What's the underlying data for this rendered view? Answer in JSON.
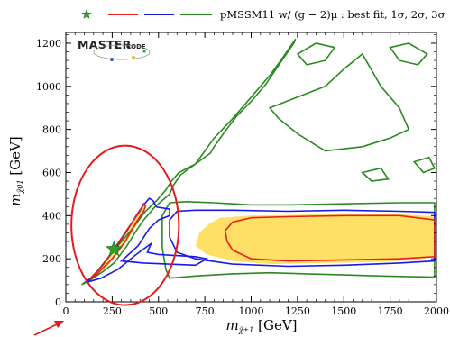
{
  "chart_data": {
    "type": "contour",
    "legend_text": "pMSSM11  w/ (g − 2)μ :  best fit, 1σ, 2σ, 3σ",
    "legend_entries": [
      {
        "name": "best fit",
        "symbol": "star",
        "color": "#2ca02c"
      },
      {
        "name": "1σ",
        "symbol": "line",
        "color": "#e8201a"
      },
      {
        "name": "2σ",
        "symbol": "line",
        "color": "#1a1ae8"
      },
      {
        "name": "3σ",
        "symbol": "line",
        "color": "#2a8a20"
      }
    ],
    "xlabel": "m",
    "xlabel_sub": "χ̃±1",
    "xlabel_unit": " [GeV]",
    "ylabel": "m",
    "ylabel_sub": "χ̃01",
    "ylabel_unit": " [GeV]",
    "xlim": [
      0,
      2000
    ],
    "ylim": [
      0,
      1250
    ],
    "xticks": [
      0,
      250,
      500,
      750,
      1000,
      1250,
      1500,
      1750,
      2000
    ],
    "yticks": [
      0,
      200,
      400,
      600,
      800,
      1000,
      1200
    ],
    "best_fit": {
      "x": 260,
      "y": 245
    },
    "contours": {
      "one_sigma_fill": [
        [
          [
            115,
            95
          ],
          [
            200,
            180
          ],
          [
            300,
            300
          ],
          [
            380,
            400
          ],
          [
            420,
            460
          ],
          [
            430,
            440
          ],
          [
            400,
            380
          ],
          [
            330,
            280
          ],
          [
            230,
            170
          ],
          [
            140,
            100
          ]
        ]
      ],
      "one_sigma_fill_band": [
        [
          [
            760,
            220
          ],
          [
            900,
            190
          ],
          [
            1100,
            175
          ],
          [
            1400,
            180
          ],
          [
            1700,
            185
          ],
          [
            1900,
            195
          ],
          [
            1990,
            210
          ],
          [
            1990,
            395
          ],
          [
            1850,
            405
          ],
          [
            1600,
            410
          ],
          [
            1300,
            405
          ],
          [
            1000,
            400
          ],
          [
            830,
            390
          ],
          [
            770,
            360
          ],
          [
            720,
            320
          ],
          [
            700,
            260
          ]
        ]
      ],
      "red_line": [
        [
          [
            130,
            105
          ],
          [
            200,
            170
          ],
          [
            280,
            270
          ],
          [
            350,
            360
          ],
          [
            400,
            420
          ],
          [
            420,
            455
          ],
          [
            430,
            445
          ],
          [
            420,
            420
          ],
          [
            380,
            370
          ],
          [
            320,
            280
          ],
          [
            250,
            200
          ],
          [
            170,
            130
          ],
          [
            130,
            105
          ]
        ],
        [
          [
            900,
            240
          ],
          [
            1000,
            200
          ],
          [
            1200,
            190
          ],
          [
            1500,
            195
          ],
          [
            1800,
            200
          ],
          [
            1990,
            210
          ],
          [
            1990,
            380
          ],
          [
            1800,
            400
          ],
          [
            1500,
            400
          ],
          [
            1200,
            395
          ],
          [
            1000,
            390
          ],
          [
            900,
            370
          ],
          [
            860,
            330
          ],
          [
            870,
            280
          ],
          [
            900,
            240
          ]
        ]
      ],
      "blue_line": [
        [
          [
            110,
            90
          ],
          [
            180,
            150
          ],
          [
            260,
            240
          ],
          [
            330,
            330
          ],
          [
            380,
            400
          ],
          [
            420,
            450
          ],
          [
            450,
            480
          ],
          [
            470,
            470
          ],
          [
            490,
            440
          ],
          [
            560,
            430
          ],
          [
            560,
            400
          ],
          [
            500,
            380
          ],
          [
            450,
            340
          ],
          [
            390,
            260
          ],
          [
            300,
            190
          ],
          [
            420,
            180
          ],
          [
            700,
            170
          ],
          [
            760,
            200
          ],
          [
            700,
            210
          ],
          [
            500,
            220
          ],
          [
            440,
            230
          ],
          [
            460,
            270
          ],
          [
            380,
            220
          ],
          [
            280,
            150
          ],
          [
            190,
            110
          ],
          [
            110,
            90
          ]
        ],
        [
          [
            600,
            230
          ],
          [
            700,
            200
          ],
          [
            900,
            175
          ],
          [
            1200,
            165
          ],
          [
            1500,
            170
          ],
          [
            1800,
            180
          ],
          [
            1990,
            190
          ],
          [
            1990,
            415
          ],
          [
            1800,
            420
          ],
          [
            1500,
            425
          ],
          [
            1200,
            420
          ],
          [
            900,
            425
          ],
          [
            700,
            425
          ],
          [
            600,
            420
          ],
          [
            560,
            380
          ],
          [
            560,
            300
          ],
          [
            600,
            230
          ]
        ]
      ],
      "green_line": [
        [
          [
            85,
            80
          ],
          [
            150,
            120
          ],
          [
            250,
            230
          ],
          [
            350,
            330
          ],
          [
            430,
            420
          ],
          [
            490,
            470
          ],
          [
            540,
            520
          ],
          [
            570,
            560
          ],
          [
            610,
            600
          ],
          [
            700,
            640
          ],
          [
            750,
            700
          ],
          [
            800,
            760
          ],
          [
            900,
            850
          ],
          [
            1000,
            950
          ],
          [
            1100,
            1050
          ],
          [
            1160,
            1120
          ],
          [
            1240,
            1220
          ],
          [
            1230,
            1200
          ],
          [
            1150,
            1100
          ],
          [
            1080,
            1010
          ],
          [
            1000,
            930
          ],
          [
            920,
            860
          ],
          [
            850,
            780
          ],
          [
            800,
            720
          ],
          [
            780,
            690
          ],
          [
            620,
            590
          ],
          [
            580,
            540
          ],
          [
            560,
            500
          ],
          [
            480,
            440
          ],
          [
            420,
            380
          ],
          [
            380,
            330
          ],
          [
            330,
            260
          ],
          [
            260,
            180
          ],
          [
            200,
            140
          ],
          [
            130,
            100
          ],
          [
            85,
            80
          ]
        ],
        [
          [
            560,
            110
          ],
          [
            700,
            120
          ],
          [
            900,
            130
          ],
          [
            1100,
            135
          ],
          [
            1300,
            130
          ],
          [
            1500,
            125
          ],
          [
            1700,
            120
          ],
          [
            1990,
            115
          ],
          [
            1990,
            460
          ],
          [
            1800,
            460
          ],
          [
            1500,
            455
          ],
          [
            1200,
            450
          ],
          [
            1000,
            450
          ],
          [
            800,
            460
          ],
          [
            650,
            465
          ],
          [
            560,
            460
          ],
          [
            520,
            400
          ],
          [
            520,
            250
          ],
          [
            540,
            150
          ],
          [
            560,
            110
          ]
        ],
        [
          [
            1100,
            900
          ],
          [
            1250,
            950
          ],
          [
            1400,
            1000
          ],
          [
            1500,
            1080
          ],
          [
            1600,
            1150
          ],
          [
            1700,
            1000
          ],
          [
            1800,
            900
          ],
          [
            1850,
            800
          ],
          [
            1750,
            760
          ],
          [
            1600,
            720
          ],
          [
            1400,
            700
          ],
          [
            1250,
            780
          ],
          [
            1150,
            850
          ],
          [
            1100,
            900
          ]
        ],
        [
          [
            1250,
            1150
          ],
          [
            1350,
            1200
          ],
          [
            1450,
            1180
          ],
          [
            1400,
            1120
          ],
          [
            1300,
            1100
          ],
          [
            1250,
            1150
          ]
        ],
        [
          [
            1750,
            1180
          ],
          [
            1850,
            1200
          ],
          [
            1950,
            1150
          ],
          [
            1900,
            1100
          ],
          [
            1800,
            1120
          ],
          [
            1750,
            1180
          ]
        ],
        [
          [
            1880,
            650
          ],
          [
            1960,
            670
          ],
          [
            1990,
            620
          ],
          [
            1930,
            600
          ],
          [
            1880,
            650
          ]
        ],
        [
          [
            1600,
            600
          ],
          [
            1700,
            620
          ],
          [
            1740,
            570
          ],
          [
            1650,
            560
          ],
          [
            1600,
            600
          ]
        ]
      ]
    },
    "annotation": {
      "type": "ellipse",
      "color": "#e51a1a",
      "cx": 320,
      "cy": 355,
      "rx": 290,
      "ry": 370,
      "arrow": true
    }
  },
  "logo": {
    "main": "MASTER",
    "sub": "CODE"
  },
  "colors": {
    "fill_one_sigma": "#ffe066",
    "fill_best": "#f08040",
    "red": "#e8201a",
    "blue": "#1a1ae8",
    "green": "#2a8a20",
    "star": "#2ca02c"
  }
}
